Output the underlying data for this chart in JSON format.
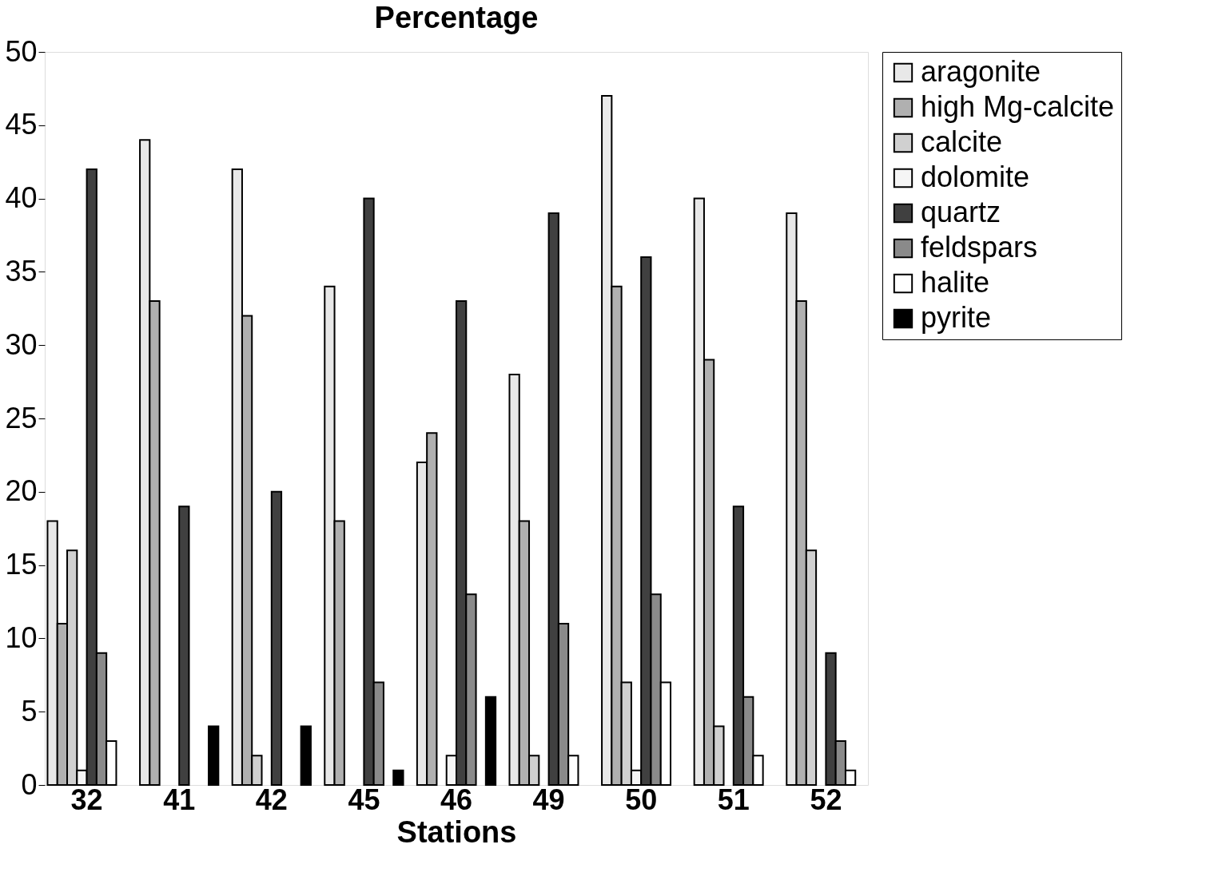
{
  "chart_data": {
    "type": "bar",
    "title": "Percentage",
    "xlabel": "Stations",
    "categories": [
      "32",
      "41",
      "42",
      "45",
      "46",
      "49",
      "50",
      "51",
      "52"
    ],
    "series": [
      {
        "name": "aragonite",
        "color": "#e8e8e8",
        "values": [
          18,
          44,
          42,
          34,
          22,
          28,
          47,
          40,
          39
        ]
      },
      {
        "name": "high Mg-calcite",
        "color": "#b0b0b0",
        "values": [
          11,
          33,
          32,
          18,
          24,
          18,
          34,
          29,
          33
        ]
      },
      {
        "name": "calcite",
        "color": "#d0d0d0",
        "values": [
          16,
          null,
          2,
          null,
          null,
          2,
          7,
          4,
          16
        ]
      },
      {
        "name": "dolomite",
        "color": "#f5f5f5",
        "values": [
          1,
          null,
          null,
          null,
          2,
          null,
          1,
          null,
          null
        ]
      },
      {
        "name": "quartz",
        "color": "#404040",
        "values": [
          42,
          19,
          20,
          40,
          33,
          39,
          36,
          19,
          9
        ]
      },
      {
        "name": "feldspars",
        "color": "#8a8a8a",
        "values": [
          9,
          null,
          null,
          7,
          13,
          11,
          13,
          6,
          3
        ]
      },
      {
        "name": "halite",
        "color": "#ffffff",
        "values": [
          3,
          null,
          null,
          null,
          null,
          2,
          7,
          2,
          1
        ]
      },
      {
        "name": "pyrite",
        "color": "#000000",
        "values": [
          null,
          4,
          4,
          1,
          6,
          null,
          null,
          null,
          null
        ]
      }
    ],
    "ylim": [
      0,
      50
    ],
    "yticks": [
      0,
      5,
      10,
      15,
      20,
      25,
      30,
      35,
      40,
      45,
      50
    ],
    "grid": false,
    "legend": "right"
  }
}
